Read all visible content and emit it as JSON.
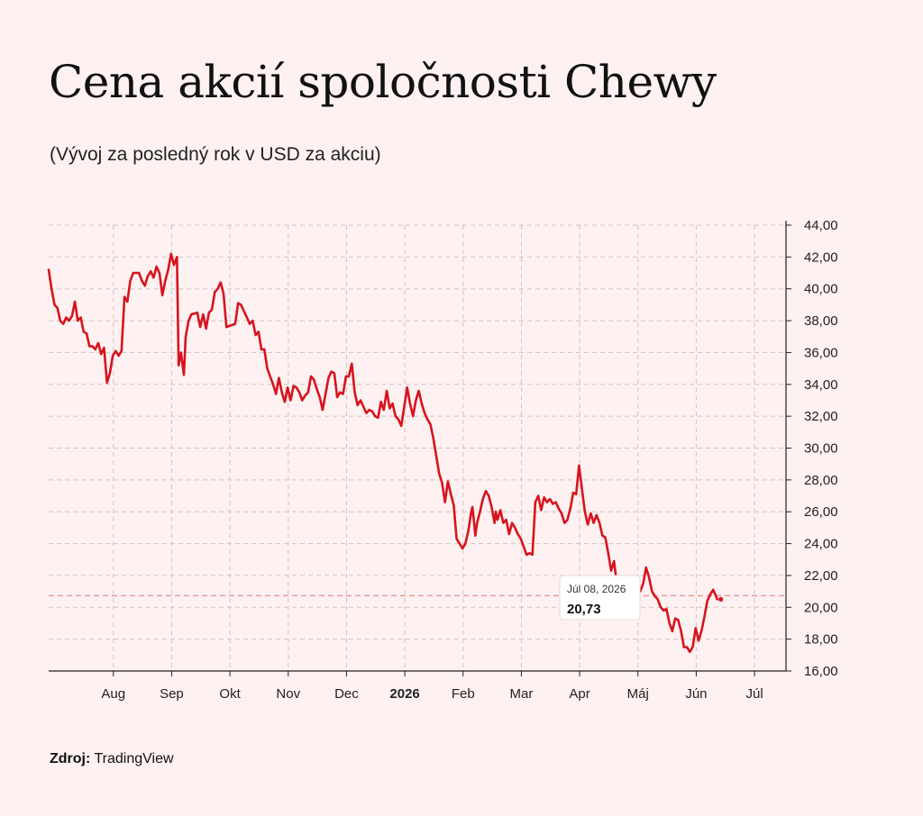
{
  "header": {
    "title": "Cena akcií spoločnosti Chewy",
    "subtitle": "(Vývoj za posledný rok v USD za akciu)"
  },
  "footer": {
    "source_label": "Zdroj:",
    "source_value": "TradingView"
  },
  "tooltip": {
    "date": "Júl 08, 2026",
    "value": "20,73"
  },
  "colors": {
    "line": "#d7141e",
    "background": "#fdf1f1",
    "grid": "#cfc4c4"
  },
  "chart_data": {
    "type": "line",
    "title": "Cena akcií spoločnosti Chewy",
    "ylabel": "",
    "xlabel": "",
    "ylim": [
      16,
      44
    ],
    "grid": true,
    "y_axis_position": "right",
    "yticks": [
      "16,00",
      "18,00",
      "20,00",
      "22,00",
      "24,00",
      "26,00",
      "28,00",
      "30,00",
      "32,00",
      "34,00",
      "36,00",
      "38,00",
      "40,00",
      "42,00",
      "44,00"
    ],
    "xticks": [
      {
        "label": "Aug",
        "x": 0.06,
        "bold": false
      },
      {
        "label": "Sep",
        "x": 1.06,
        "bold": false
      },
      {
        "label": "Okt",
        "x": 2.06,
        "bold": false
      },
      {
        "label": "Nov",
        "x": 3.06,
        "bold": false
      },
      {
        "label": "Dec",
        "x": 4.06,
        "bold": false
      },
      {
        "label": "2026",
        "x": 5.06,
        "bold": true
      },
      {
        "label": "Feb",
        "x": 6.06,
        "bold": false
      },
      {
        "label": "Mar",
        "x": 7.06,
        "bold": false
      },
      {
        "label": "Apr",
        "x": 8.06,
        "bold": false
      },
      {
        "label": "Máj",
        "x": 9.06,
        "bold": false
      },
      {
        "label": "Jún",
        "x": 10.06,
        "bold": false
      },
      {
        "label": "Júl",
        "x": 11.06,
        "bold": false
      }
    ],
    "last_value": 20.73,
    "series": [
      {
        "points": [
          [
            -1.05,
            41.2
          ],
          [
            -1.0,
            40.0
          ],
          [
            -0.95,
            39.0
          ],
          [
            -0.9,
            38.8
          ],
          [
            -0.85,
            38.0
          ],
          [
            -0.8,
            37.8
          ],
          [
            -0.75,
            38.2
          ],
          [
            -0.7,
            38.0
          ],
          [
            -0.65,
            38.3
          ],
          [
            -0.6,
            39.2
          ],
          [
            -0.55,
            38.0
          ],
          [
            -0.5,
            38.2
          ],
          [
            -0.45,
            37.3
          ],
          [
            -0.4,
            37.2
          ],
          [
            -0.35,
            36.4
          ],
          [
            -0.3,
            36.4
          ],
          [
            -0.25,
            36.2
          ],
          [
            -0.2,
            36.6
          ],
          [
            -0.15,
            35.9
          ],
          [
            -0.1,
            36.3
          ],
          [
            -0.05,
            34.1
          ],
          [
            0.0,
            34.7
          ],
          [
            0.05,
            35.8
          ],
          [
            0.1,
            36.1
          ],
          [
            0.15,
            35.8
          ],
          [
            0.2,
            36.1
          ],
          [
            0.25,
            39.5
          ],
          [
            0.3,
            39.2
          ],
          [
            0.35,
            40.5
          ],
          [
            0.4,
            41.0
          ],
          [
            0.5,
            41.0
          ],
          [
            0.55,
            40.5
          ],
          [
            0.6,
            40.2
          ],
          [
            0.65,
            40.8
          ],
          [
            0.7,
            41.1
          ],
          [
            0.75,
            40.7
          ],
          [
            0.8,
            41.4
          ],
          [
            0.85,
            41.0
          ],
          [
            0.9,
            39.6
          ],
          [
            0.95,
            40.5
          ],
          [
            1.0,
            41.2
          ],
          [
            1.05,
            42.2
          ],
          [
            1.1,
            41.5
          ],
          [
            1.15,
            42.0
          ],
          [
            1.18,
            35.2
          ],
          [
            1.22,
            36.0
          ],
          [
            1.27,
            34.6
          ],
          [
            1.3,
            37.0
          ],
          [
            1.35,
            38.0
          ],
          [
            1.4,
            38.4
          ],
          [
            1.5,
            38.5
          ],
          [
            1.55,
            37.6
          ],
          [
            1.6,
            38.4
          ],
          [
            1.65,
            37.5
          ],
          [
            1.7,
            38.5
          ],
          [
            1.75,
            38.7
          ],
          [
            1.8,
            39.8
          ],
          [
            1.85,
            40.0
          ],
          [
            1.9,
            40.4
          ],
          [
            1.95,
            39.7
          ],
          [
            2.0,
            37.6
          ],
          [
            2.15,
            37.8
          ],
          [
            2.2,
            39.1
          ],
          [
            2.25,
            39.0
          ],
          [
            2.3,
            38.6
          ],
          [
            2.35,
            38.2
          ],
          [
            2.4,
            37.8
          ],
          [
            2.45,
            38.0
          ],
          [
            2.5,
            37.1
          ],
          [
            2.55,
            37.3
          ],
          [
            2.6,
            36.2
          ],
          [
            2.65,
            36.2
          ],
          [
            2.7,
            35.0
          ],
          [
            2.75,
            34.5
          ],
          [
            2.8,
            34.0
          ],
          [
            2.85,
            33.4
          ],
          [
            2.9,
            34.4
          ],
          [
            2.95,
            33.5
          ],
          [
            3.0,
            32.9
          ],
          [
            3.05,
            33.8
          ],
          [
            3.1,
            33.0
          ],
          [
            3.15,
            33.9
          ],
          [
            3.2,
            33.8
          ],
          [
            3.25,
            33.5
          ],
          [
            3.3,
            33.0
          ],
          [
            3.35,
            33.3
          ],
          [
            3.4,
            33.5
          ],
          [
            3.45,
            34.5
          ],
          [
            3.5,
            34.3
          ],
          [
            3.55,
            33.7
          ],
          [
            3.6,
            33.2
          ],
          [
            3.65,
            32.4
          ],
          [
            3.7,
            33.4
          ],
          [
            3.75,
            34.4
          ],
          [
            3.8,
            34.8
          ],
          [
            3.85,
            34.7
          ],
          [
            3.9,
            33.2
          ],
          [
            3.95,
            33.5
          ],
          [
            4.0,
            33.4
          ],
          [
            4.05,
            34.5
          ],
          [
            4.1,
            34.5
          ],
          [
            4.15,
            35.3
          ],
          [
            4.2,
            33.5
          ],
          [
            4.25,
            32.7
          ],
          [
            4.3,
            33.0
          ],
          [
            4.35,
            32.6
          ],
          [
            4.4,
            32.2
          ],
          [
            4.45,
            32.4
          ],
          [
            4.5,
            32.3
          ],
          [
            4.55,
            32.0
          ],
          [
            4.6,
            31.9
          ],
          [
            4.65,
            32.9
          ],
          [
            4.7,
            32.4
          ],
          [
            4.75,
            33.6
          ],
          [
            4.8,
            32.5
          ],
          [
            4.85,
            32.8
          ],
          [
            4.9,
            32.0
          ],
          [
            4.95,
            31.8
          ],
          [
            5.0,
            31.4
          ],
          [
            5.05,
            32.6
          ],
          [
            5.1,
            33.8
          ],
          [
            5.15,
            32.8
          ],
          [
            5.2,
            32.0
          ],
          [
            5.25,
            33.0
          ],
          [
            5.3,
            33.6
          ],
          [
            5.35,
            32.8
          ],
          [
            5.4,
            32.2
          ],
          [
            5.45,
            31.8
          ],
          [
            5.5,
            31.5
          ],
          [
            5.55,
            30.6
          ],
          [
            5.6,
            29.5
          ],
          [
            5.65,
            28.4
          ],
          [
            5.7,
            27.8
          ],
          [
            5.75,
            26.6
          ],
          [
            5.8,
            27.9
          ],
          [
            5.85,
            27.1
          ],
          [
            5.9,
            26.4
          ],
          [
            5.95,
            24.3
          ],
          [
            6.0,
            24.0
          ],
          [
            6.05,
            23.7
          ],
          [
            6.1,
            24.0
          ],
          [
            6.15,
            24.8
          ],
          [
            6.2,
            26.0
          ],
          [
            6.22,
            26.3
          ],
          [
            6.25,
            25.3
          ],
          [
            6.27,
            24.5
          ],
          [
            6.3,
            25.3
          ],
          [
            6.35,
            26.0
          ],
          [
            6.4,
            26.8
          ],
          [
            6.45,
            27.3
          ],
          [
            6.5,
            27.0
          ],
          [
            6.55,
            26.3
          ],
          [
            6.6,
            25.3
          ],
          [
            6.62,
            26.0
          ],
          [
            6.65,
            25.5
          ],
          [
            6.7,
            26.1
          ],
          [
            6.75,
            25.3
          ],
          [
            6.8,
            25.5
          ],
          [
            6.85,
            24.6
          ],
          [
            6.9,
            25.3
          ],
          [
            6.95,
            25.0
          ],
          [
            7.0,
            24.6
          ],
          [
            7.05,
            24.3
          ],
          [
            7.1,
            23.8
          ],
          [
            7.15,
            23.3
          ],
          [
            7.2,
            23.4
          ],
          [
            7.25,
            23.3
          ],
          [
            7.3,
            26.6
          ],
          [
            7.35,
            27.0
          ],
          [
            7.4,
            26.1
          ],
          [
            7.45,
            26.9
          ],
          [
            7.5,
            26.6
          ],
          [
            7.55,
            26.8
          ],
          [
            7.6,
            26.5
          ],
          [
            7.65,
            26.6
          ],
          [
            7.7,
            26.2
          ],
          [
            7.75,
            25.9
          ],
          [
            7.8,
            25.3
          ],
          [
            7.85,
            25.5
          ],
          [
            7.9,
            26.2
          ],
          [
            7.95,
            27.2
          ],
          [
            8.0,
            27.1
          ],
          [
            8.05,
            28.9
          ],
          [
            8.1,
            27.4
          ],
          [
            8.15,
            26.0
          ],
          [
            8.2,
            25.2
          ],
          [
            8.25,
            25.9
          ],
          [
            8.3,
            25.3
          ],
          [
            8.35,
            25.8
          ],
          [
            8.4,
            25.3
          ],
          [
            8.45,
            24.5
          ],
          [
            8.5,
            24.4
          ],
          [
            8.55,
            23.4
          ],
          [
            8.6,
            22.3
          ],
          [
            8.65,
            22.9
          ],
          [
            8.7,
            21.4
          ],
          [
            8.75,
            21.3
          ],
          [
            8.8,
            21.7
          ],
          [
            8.85,
            19.3
          ],
          [
            8.9,
            20.0
          ],
          [
            8.95,
            19.9
          ],
          [
            9.0,
            20.7
          ],
          [
            9.05,
            21.0
          ],
          [
            9.1,
            21.0
          ],
          [
            9.15,
            21.5
          ],
          [
            9.2,
            22.5
          ],
          [
            9.25,
            21.9
          ],
          [
            9.3,
            21.0
          ],
          [
            9.35,
            20.7
          ],
          [
            9.4,
            20.5
          ],
          [
            9.45,
            20.0
          ],
          [
            9.5,
            19.8
          ],
          [
            9.55,
            19.9
          ],
          [
            9.6,
            19.0
          ],
          [
            9.65,
            18.5
          ],
          [
            9.7,
            19.3
          ],
          [
            9.75,
            19.2
          ],
          [
            9.8,
            18.5
          ],
          [
            9.85,
            17.5
          ],
          [
            9.9,
            17.5
          ],
          [
            9.95,
            17.2
          ],
          [
            10.0,
            17.5
          ],
          [
            10.05,
            18.7
          ],
          [
            10.1,
            17.9
          ],
          [
            10.15,
            18.5
          ],
          [
            10.2,
            19.4
          ],
          [
            10.25,
            20.4
          ],
          [
            10.3,
            20.8
          ],
          [
            10.35,
            21.1
          ],
          [
            10.4,
            20.7
          ],
          [
            10.42,
            20.5
          ]
        ]
      }
    ]
  }
}
